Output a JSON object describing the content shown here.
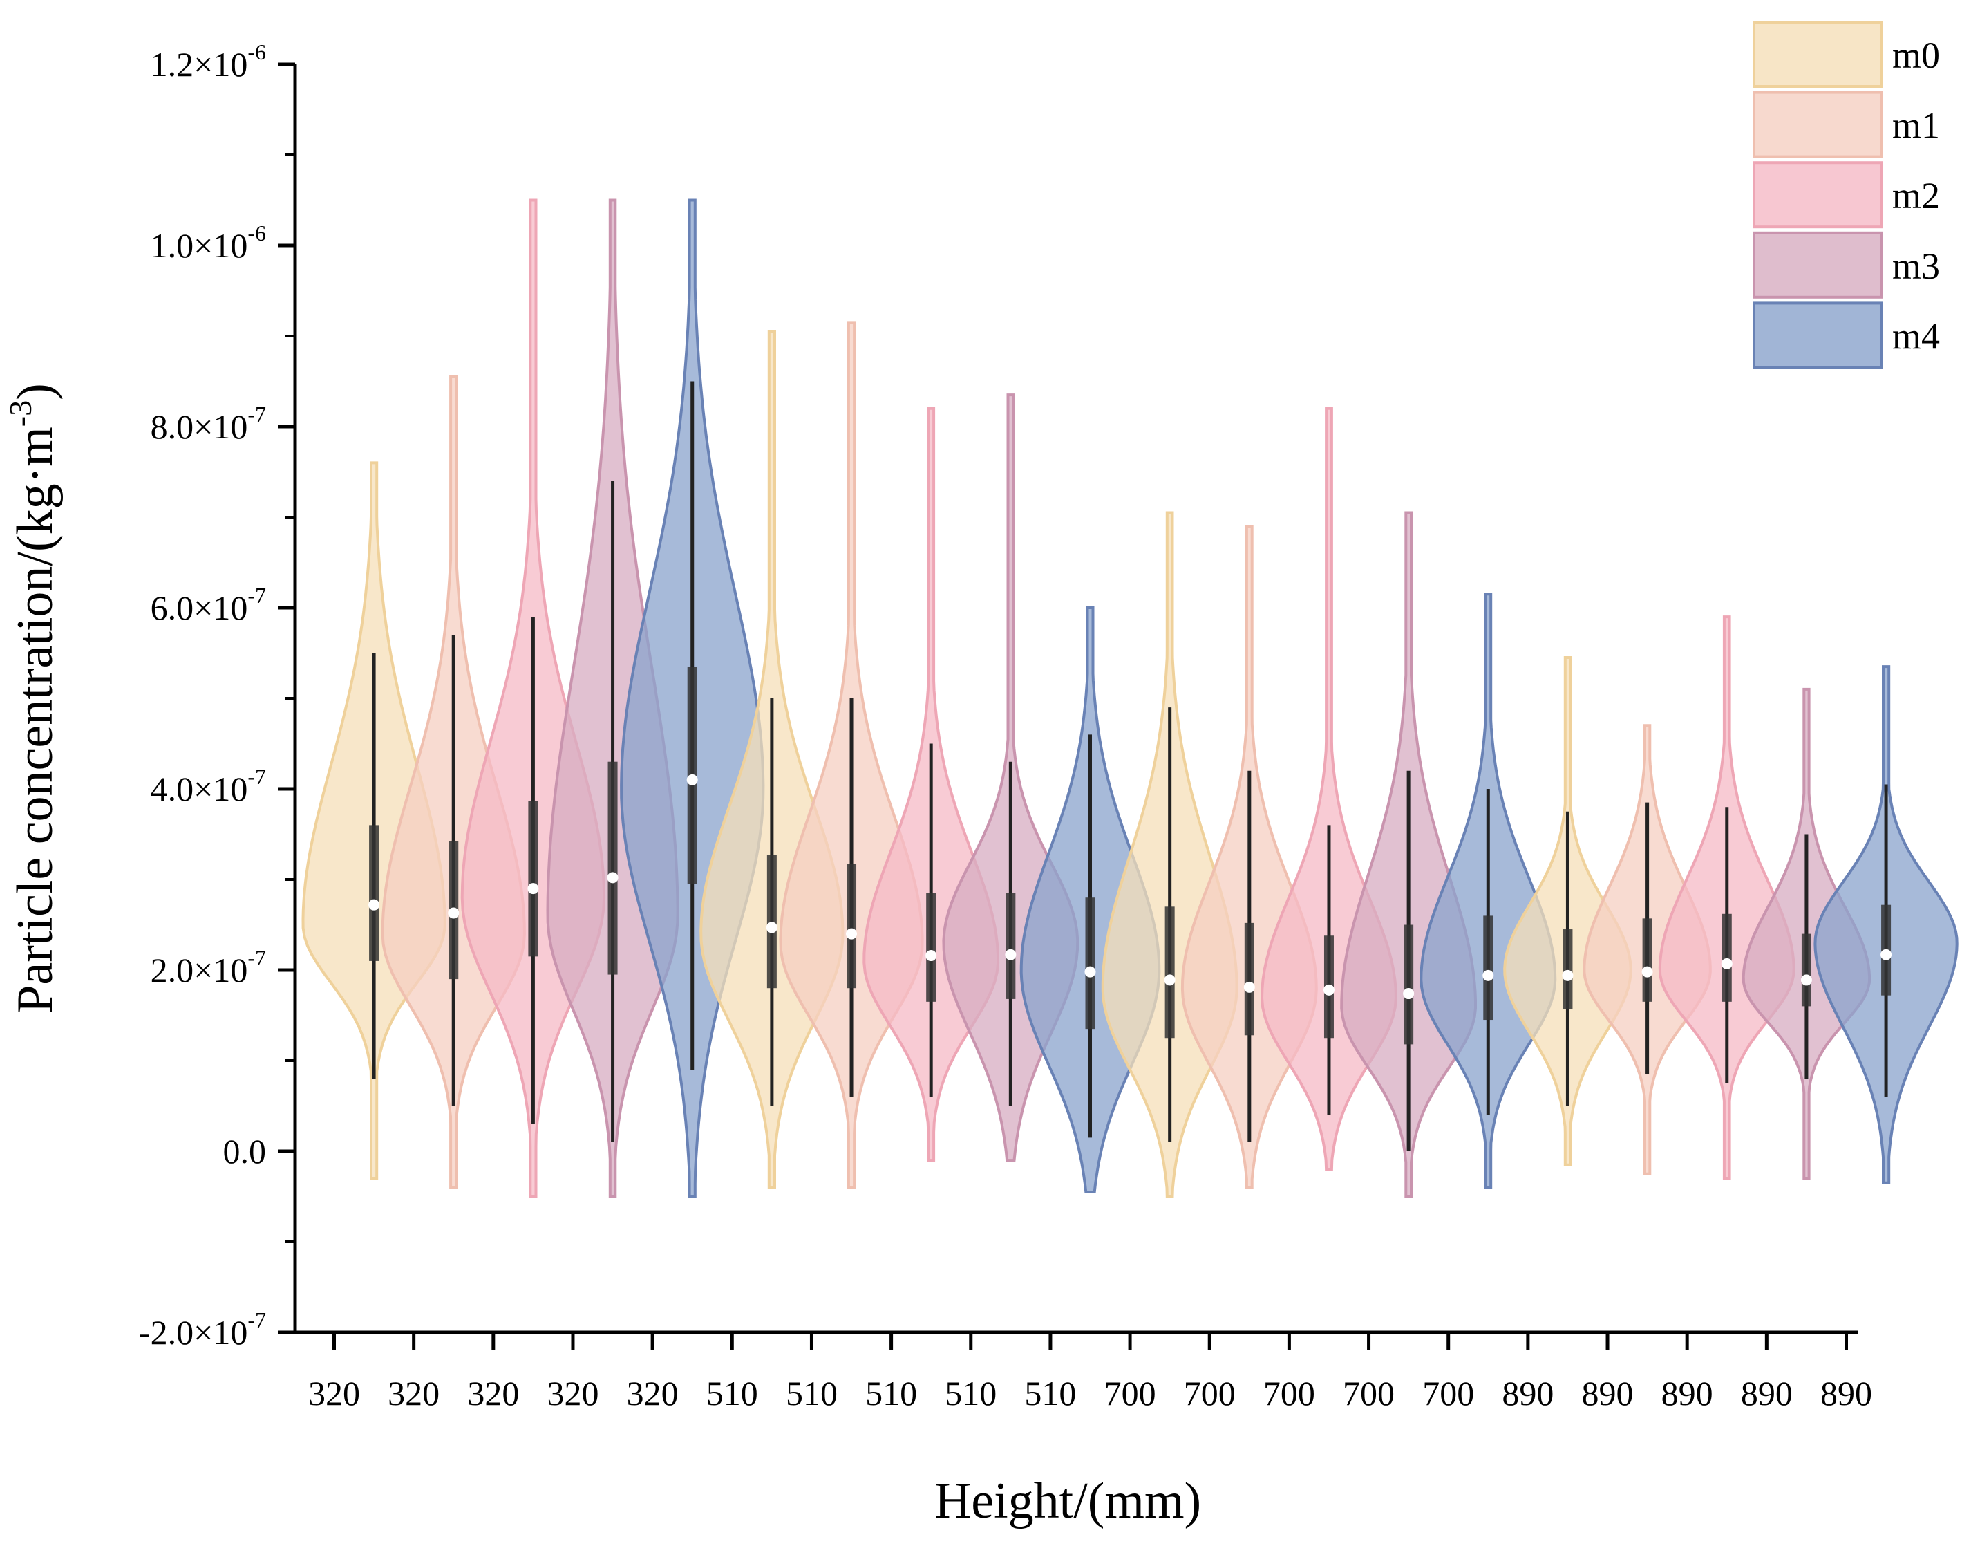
{
  "chart_data": {
    "type": "violin",
    "xlabel": "Height/(mm)",
    "ylabel": "Particle concentration/(kg·m",
    "ylabel_exponent": "-3",
    "ylabel_suffix": ")",
    "ylim": [
      -2e-07,
      1.2e-06
    ],
    "y_ticks": [
      {
        "value": 1.2e-06,
        "mantissa": "1.2×10",
        "exp": "-6"
      },
      {
        "value": 1e-06,
        "mantissa": "1.0×10",
        "exp": "-6"
      },
      {
        "value": 8e-07,
        "mantissa": "8.0×10",
        "exp": "-7"
      },
      {
        "value": 6e-07,
        "mantissa": "6.0×10",
        "exp": "-7"
      },
      {
        "value": 4e-07,
        "mantissa": "4.0×10",
        "exp": "-7"
      },
      {
        "value": 2e-07,
        "mantissa": "2.0×10",
        "exp": "-7"
      },
      {
        "value": 0.0,
        "mantissa": "0.0",
        "exp": ""
      },
      {
        "value": -2e-07,
        "mantissa": "-2.0×10",
        "exp": "-7"
      }
    ],
    "x_tick_labels": [
      "320",
      "320",
      "320",
      "320",
      "320",
      "510",
      "510",
      "510",
      "510",
      "510",
      "700",
      "700",
      "700",
      "700",
      "700",
      "890",
      "890",
      "890",
      "890",
      "890"
    ],
    "legend": [
      {
        "name": "m0",
        "fill": "#f5dfb8",
        "stroke": "#efd19b"
      },
      {
        "name": "m1",
        "fill": "#f5cfc2",
        "stroke": "#efbfaf"
      },
      {
        "name": "m2",
        "fill": "#f5b9c6",
        "stroke": "#eea6b5"
      },
      {
        "name": "m3",
        "fill": "#d7acc1",
        "stroke": "#c994ae"
      },
      {
        "name": "m4",
        "fill": "#8aa3cc",
        "stroke": "#6982b5"
      }
    ],
    "series": [
      {
        "name": "m0",
        "height": "320",
        "min": -3e-08,
        "max": 7.6e-07,
        "q1": 2.1e-07,
        "median": 2.72e-07,
        "q3": 3.6e-07,
        "wl": 8e-08,
        "wh": 5.5e-07,
        "mode": 2.5e-07,
        "max_half_width": 0.036
      },
      {
        "name": "m1",
        "height": "320",
        "min": -4e-08,
        "max": 8.55e-07,
        "q1": 1.9e-07,
        "median": 2.63e-07,
        "q3": 3.42e-07,
        "wl": 5e-08,
        "wh": 5.7e-07,
        "mode": 2.4e-07,
        "max_half_width": 0.036
      },
      {
        "name": "m2",
        "height": "320",
        "min": -5e-08,
        "max": 1.05e-06,
        "q1": 2.15e-07,
        "median": 2.9e-07,
        "q3": 3.87e-07,
        "wl": 3e-08,
        "wh": 5.9e-07,
        "mode": 2.8e-07,
        "max_half_width": 0.036
      },
      {
        "name": "m3",
        "height": "320",
        "min": -5e-08,
        "max": 1.05e-06,
        "q1": 1.95e-07,
        "median": 3.02e-07,
        "q3": 4.3e-07,
        "wl": 1e-08,
        "wh": 7.4e-07,
        "mode": 2.6e-07,
        "max_half_width": 0.033
      },
      {
        "name": "m4",
        "height": "320",
        "min": -5e-08,
        "max": 1.05e-06,
        "q1": 2.95e-07,
        "median": 4.1e-07,
        "q3": 5.35e-07,
        "wl": 9e-08,
        "wh": 8.5e-07,
        "mode": 4e-07,
        "max_half_width": 0.036
      },
      {
        "name": "m0",
        "height": "510",
        "min": -4e-08,
        "max": 9.05e-07,
        "q1": 1.8e-07,
        "median": 2.47e-07,
        "q3": 3.27e-07,
        "wl": 5e-08,
        "wh": 5e-07,
        "mode": 2.4e-07,
        "max_half_width": 0.036
      },
      {
        "name": "m1",
        "height": "510",
        "min": -4e-08,
        "max": 9.15e-07,
        "q1": 1.8e-07,
        "median": 2.4e-07,
        "q3": 3.17e-07,
        "wl": 6e-08,
        "wh": 5e-07,
        "mode": 2.3e-07,
        "max_half_width": 0.036
      },
      {
        "name": "m2",
        "height": "510",
        "min": -1e-08,
        "max": 8.2e-07,
        "q1": 1.65e-07,
        "median": 2.16e-07,
        "q3": 2.85e-07,
        "wl": 6e-08,
        "wh": 4.5e-07,
        "mode": 2.1e-07,
        "max_half_width": 0.034
      },
      {
        "name": "m3",
        "height": "510",
        "min": -1e-08,
        "max": 8.35e-07,
        "q1": 1.68e-07,
        "median": 2.17e-07,
        "q3": 2.85e-07,
        "wl": 5e-08,
        "wh": 4.3e-07,
        "mode": 2.3e-07,
        "max_half_width": 0.034
      },
      {
        "name": "m4",
        "height": "510",
        "min": -4.5e-08,
        "max": 6e-07,
        "q1": 1.35e-07,
        "median": 1.98e-07,
        "q3": 2.8e-07,
        "wl": 1.5e-08,
        "wh": 4.6e-07,
        "mode": 2e-07,
        "max_half_width": 0.035
      },
      {
        "name": "m0",
        "height": "700",
        "min": -5e-08,
        "max": 7.05e-07,
        "q1": 1.25e-07,
        "median": 1.89e-07,
        "q3": 2.7e-07,
        "wl": 1e-08,
        "wh": 4.9e-07,
        "mode": 1.8e-07,
        "max_half_width": 0.034
      },
      {
        "name": "m1",
        "height": "700",
        "min": -4e-08,
        "max": 6.9e-07,
        "q1": 1.28e-07,
        "median": 1.81e-07,
        "q3": 2.52e-07,
        "wl": 1e-08,
        "wh": 4.2e-07,
        "mode": 1.8e-07,
        "max_half_width": 0.034
      },
      {
        "name": "m2",
        "height": "700",
        "min": -2e-08,
        "max": 8.2e-07,
        "q1": 1.25e-07,
        "median": 1.78e-07,
        "q3": 2.38e-07,
        "wl": 4e-08,
        "wh": 3.6e-07,
        "mode": 1.7e-07,
        "max_half_width": 0.034
      },
      {
        "name": "m3",
        "height": "700",
        "min": -5e-08,
        "max": 7.05e-07,
        "q1": 1.18e-07,
        "median": 1.74e-07,
        "q3": 2.5e-07,
        "wl": 0.0,
        "wh": 4.2e-07,
        "mode": 1.6e-07,
        "max_half_width": 0.034
      },
      {
        "name": "m4",
        "height": "700",
        "min": -4e-08,
        "max": 6.15e-07,
        "q1": 1.45e-07,
        "median": 1.94e-07,
        "q3": 2.6e-07,
        "wl": 4e-08,
        "wh": 4e-07,
        "mode": 1.9e-07,
        "max_half_width": 0.034
      },
      {
        "name": "m0",
        "height": "890",
        "min": -1.5e-08,
        "max": 5.45e-07,
        "q1": 1.57e-07,
        "median": 1.94e-07,
        "q3": 2.45e-07,
        "wl": 5e-08,
        "wh": 3.75e-07,
        "mode": 2e-07,
        "max_half_width": 0.032
      },
      {
        "name": "m1",
        "height": "890",
        "min": -2.5e-08,
        "max": 4.7e-07,
        "q1": 1.65e-07,
        "median": 1.98e-07,
        "q3": 2.57e-07,
        "wl": 8.5e-08,
        "wh": 3.85e-07,
        "mode": 2e-07,
        "max_half_width": 0.032
      },
      {
        "name": "m2",
        "height": "890",
        "min": -3e-08,
        "max": 5.9e-07,
        "q1": 1.65e-07,
        "median": 2.07e-07,
        "q3": 2.62e-07,
        "wl": 7.5e-08,
        "wh": 3.8e-07,
        "mode": 2e-07,
        "max_half_width": 0.034
      },
      {
        "name": "m3",
        "height": "890",
        "min": -3e-08,
        "max": 5.1e-07,
        "q1": 1.6e-07,
        "median": 1.89e-07,
        "q3": 2.4e-07,
        "wl": 8e-08,
        "wh": 3.5e-07,
        "mode": 1.9e-07,
        "max_half_width": 0.032
      },
      {
        "name": "m4",
        "height": "890",
        "min": -3.5e-08,
        "max": 5.35e-07,
        "q1": 1.72e-07,
        "median": 2.17e-07,
        "q3": 2.72e-07,
        "wl": 6e-08,
        "wh": 4.05e-07,
        "mode": 2.3e-07,
        "max_half_width": 0.036
      }
    ]
  }
}
